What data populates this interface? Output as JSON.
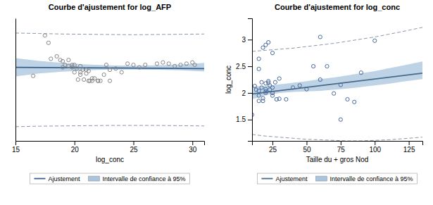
{
  "chart_data": [
    {
      "type": "scatter",
      "title": "Courbe d'ajustement for log_AFP",
      "xlabel": "log_conc",
      "xlim": [
        15,
        31
      ],
      "ylim": [
        -0.8,
        4.2
      ],
      "xticks": [
        15,
        20,
        25,
        30
      ],
      "tick_labels": "x",
      "legend": "bottom",
      "series": [
        {
          "name": "Ajustement",
          "type": "line",
          "color": "#3a5f8a",
          "line_style": "solid",
          "x": [
            15,
            31
          ],
          "values": [
            2.2,
            2.15
          ]
        },
        {
          "name": "Intervalle de confiance à 95%",
          "type": "area",
          "color": "#a8c4de",
          "x": [
            15,
            17,
            19,
            21,
            23,
            25,
            27,
            29,
            31
          ],
          "upper": [
            2.58,
            2.46,
            2.38,
            2.32,
            2.28,
            2.27,
            2.28,
            2.32,
            2.38
          ],
          "lower": [
            1.83,
            1.95,
            2.02,
            2.08,
            2.11,
            2.11,
            2.1,
            2.08,
            2.03
          ]
        },
        {
          "type": "line",
          "color": "#8899aa",
          "line_style": "dashed",
          "x": [
            15,
            17,
            19,
            21,
            23,
            25,
            27,
            29,
            31
          ],
          "values": [
            3.6,
            3.58,
            3.56,
            3.55,
            3.54,
            3.53,
            3.54,
            3.55,
            3.56
          ]
        },
        {
          "type": "line",
          "color": "#8899aa",
          "line_style": "dashed",
          "x": [
            15,
            17,
            19,
            21,
            23,
            25,
            27,
            29,
            31
          ],
          "values": [
            -0.22,
            -0.2,
            -0.19,
            -0.18,
            -0.17,
            -0.17,
            -0.17,
            -0.18,
            -0.19
          ]
        },
        {
          "type": "scatter",
          "color": "#888888",
          "marker": "open-circle",
          "x": [
            16.5,
            17.5,
            17.8,
            18.0,
            18.5,
            18.8,
            19.0,
            19.0,
            19.2,
            19.5,
            19.5,
            19.8,
            19.8,
            20.0,
            20.0,
            20.2,
            20.3,
            20.5,
            20.5,
            20.5,
            20.7,
            20.8,
            21.0,
            21.0,
            21.2,
            21.3,
            21.5,
            21.5,
            21.7,
            22.0,
            22.0,
            22.5,
            22.7,
            23.0,
            23.5,
            24.0,
            24.5,
            25.0,
            25.5,
            26.0,
            27.0,
            27.5,
            28.0,
            28.5,
            29.0,
            29.5,
            30.0,
            30.2,
            21.2,
            22.2,
            23.0
          ],
          "values": [
            1.85,
            3.5,
            3.2,
            2.55,
            2.65,
            2.5,
            2.45,
            2.2,
            2.3,
            2.5,
            2.25,
            2.3,
            2.2,
            2.3,
            2.0,
            2.15,
            1.7,
            2.25,
            2.0,
            1.9,
            2.1,
            1.7,
            2.1,
            1.95,
            2.05,
            1.65,
            1.75,
            1.65,
            1.75,
            1.65,
            1.65,
            1.9,
            2.3,
            2.1,
            2.15,
            2.0,
            2.35,
            2.3,
            2.2,
            2.3,
            2.35,
            2.4,
            2.35,
            2.25,
            2.3,
            2.35,
            2.4,
            2.3,
            1.65,
            1.65,
            1.65
          ]
        }
      ]
    },
    {
      "type": "scatter",
      "title": "Courbe d'ajustement for log_conc",
      "xlabel": "Taille du + gros Nod",
      "ylabel": "log_conc",
      "xlim": [
        10,
        135
      ],
      "ylim": [
        1.1,
        3.4
      ],
      "xticks": [
        25,
        50,
        75,
        100,
        125
      ],
      "yticks": [
        1.5,
        2.0,
        2.5,
        3.0
      ],
      "legend": "bottom",
      "series": [
        {
          "name": "Ajustement",
          "type": "line",
          "color": "#4a6a8a",
          "line_style": "solid",
          "x": [
            10,
            135
          ],
          "values": [
            1.98,
            2.37
          ]
        },
        {
          "name": "Intervalle de confiance à 95%",
          "type": "area",
          "color": "#a8c4de",
          "x": [
            10,
            20,
            30,
            40,
            50,
            60,
            70,
            80,
            90,
            100,
            110,
            120,
            135
          ],
          "upper": [
            2.12,
            2.13,
            2.16,
            2.19,
            2.22,
            2.26,
            2.29,
            2.33,
            2.37,
            2.41,
            2.46,
            2.51,
            2.59
          ],
          "lower": [
            1.88,
            1.96,
            2.0,
            2.02,
            2.03,
            2.04,
            2.06,
            2.08,
            2.11,
            2.14,
            2.17,
            2.21,
            2.26
          ]
        },
        {
          "type": "line",
          "color": "#8899aa",
          "line_style": "dashed",
          "x": [
            10,
            20,
            30,
            40,
            50,
            60,
            70,
            80,
            90,
            100,
            110,
            120,
            135
          ],
          "values": [
            2.78,
            2.8,
            2.82,
            2.84,
            2.87,
            2.9,
            2.93,
            2.97,
            3.01,
            3.05,
            3.1,
            3.15,
            3.23
          ]
        },
        {
          "type": "line",
          "color": "#8899aa",
          "line_style": "dashed",
          "x": [
            10,
            20,
            30,
            40,
            50,
            60,
            70,
            80,
            90,
            100,
            110,
            120,
            135
          ],
          "values": [
            1.22,
            1.19,
            1.17,
            1.15,
            1.13,
            1.12,
            1.11,
            1.1,
            1.1,
            1.11,
            1.12,
            1.14,
            1.17
          ]
        },
        {
          "type": "scatter",
          "color": "#4a6a9a",
          "marker": "open-circle",
          "x": [
            10,
            12,
            13,
            15,
            15,
            15,
            17,
            17,
            18,
            18,
            20,
            20,
            20,
            20,
            22,
            22,
            23,
            23,
            25,
            25,
            25,
            27,
            28,
            30,
            35,
            40,
            45,
            50,
            55,
            60,
            65,
            70,
            75,
            80,
            85,
            90,
            15,
            15,
            18,
            20,
            22,
            25,
            30,
            60,
            75,
            100
          ],
          "values": [
            1.59,
            2.13,
            2.06,
            2.04,
            1.95,
            1.85,
            2.2,
            2.1,
            1.9,
            1.85,
            2.18,
            2.07,
            2.03,
            2.0,
            2.22,
            2.19,
            2.14,
            2.06,
            2.1,
            2.0,
            1.95,
            2.2,
            1.88,
            1.89,
            1.88,
            2.1,
            2.14,
            2.07,
            2.5,
            3.05,
            2.5,
            1.99,
            2.15,
            1.88,
            1.83,
            2.38,
            2.64,
            2.45,
            2.85,
            2.9,
            2.95,
            2.75,
            2.27,
            2.25,
            1.5,
            2.98
          ]
        }
      ]
    }
  ]
}
